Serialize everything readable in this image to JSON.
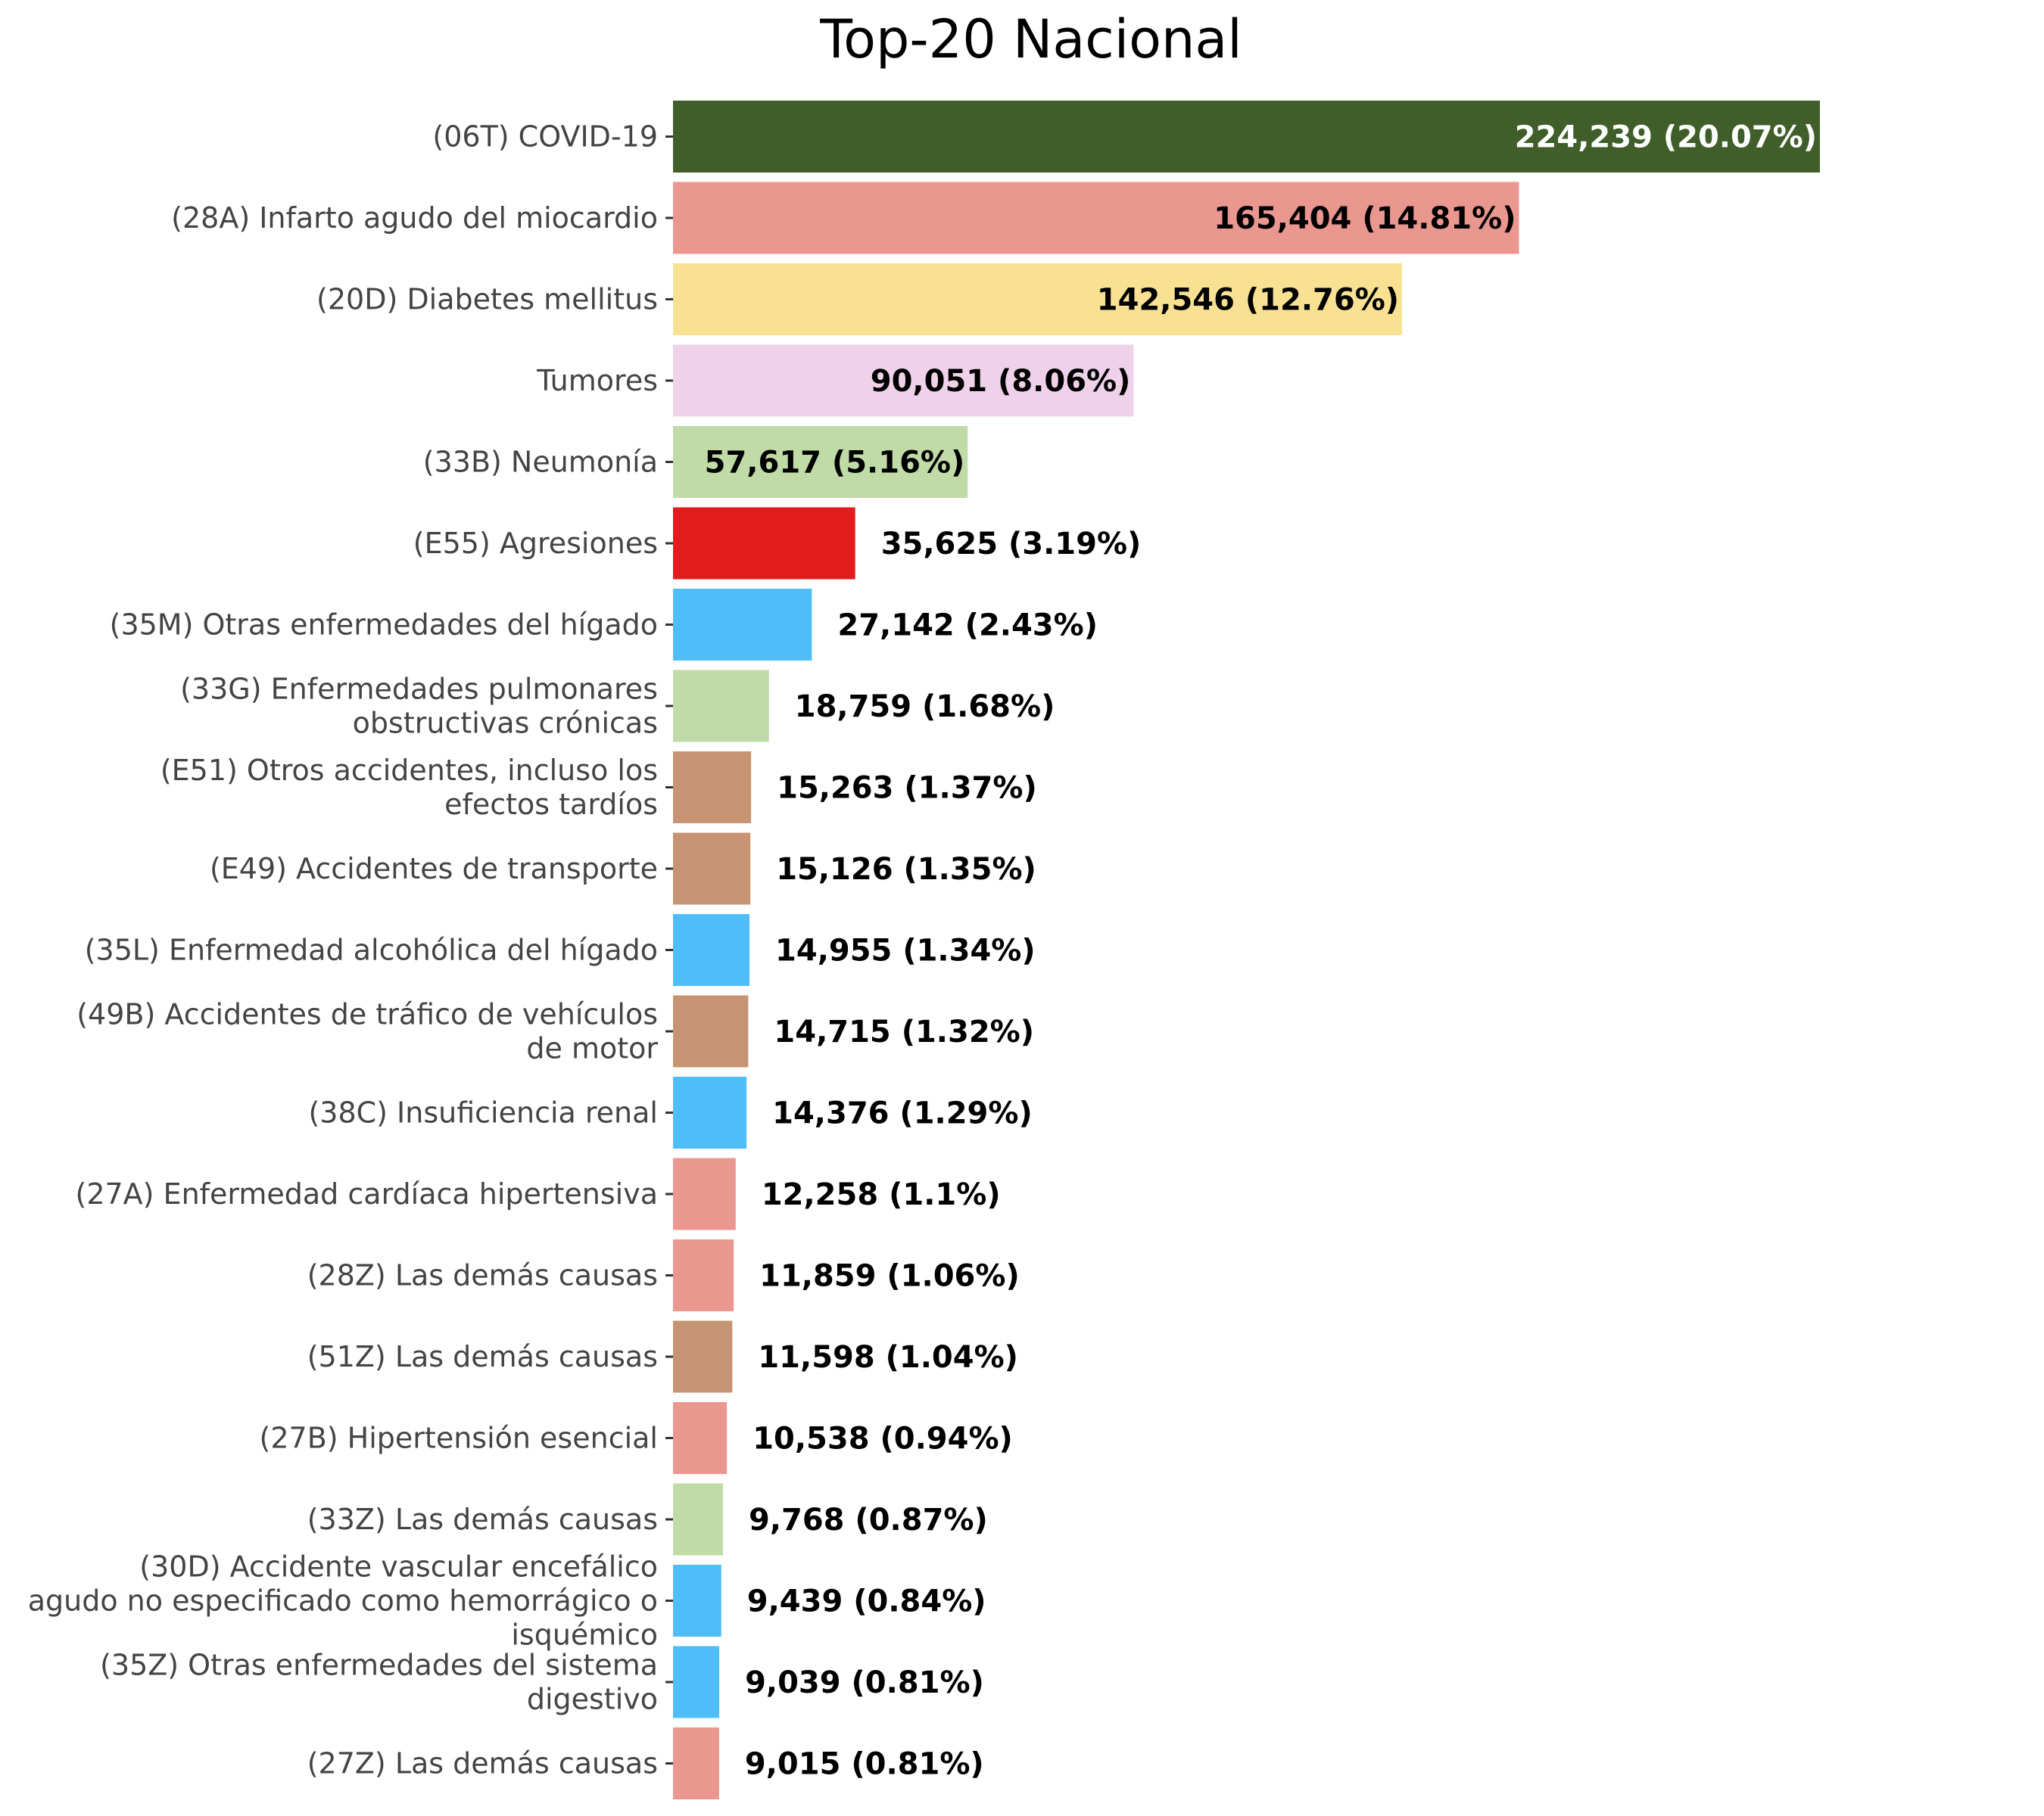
{
  "chart_data": {
    "type": "bar",
    "orientation": "horizontal",
    "title": "Top-20 Nacional",
    "xlabel": "",
    "ylabel": "",
    "grid": false,
    "legend": "none",
    "xlim": [
      0,
      224239
    ],
    "categories": [
      [
        "(06T) COVID-19"
      ],
      [
        "(28A) Infarto agudo del miocardio"
      ],
      [
        "(20D) Diabetes mellitus"
      ],
      [
        "Tumores"
      ],
      [
        "(33B) Neumonía"
      ],
      [
        "(E55) Agresiones"
      ],
      [
        "(35M) Otras enfermedades del hígado"
      ],
      [
        "(33G) Enfermedades pulmonares",
        "obstructivas crónicas"
      ],
      [
        "(E51) Otros accidentes, incluso los",
        "efectos tardíos"
      ],
      [
        "(E49) Accidentes de transporte"
      ],
      [
        "(35L) Enfermedad alcohólica del hígado"
      ],
      [
        "(49B) Accidentes de tráfico de vehículos",
        "de motor"
      ],
      [
        "(38C) Insuficiencia renal"
      ],
      [
        "(27A) Enfermedad cardíaca hipertensiva"
      ],
      [
        "(28Z) Las demás causas"
      ],
      [
        "(51Z) Las demás causas"
      ],
      [
        "(27B) Hipertensión esencial"
      ],
      [
        "(33Z) Las demás causas"
      ],
      [
        "(30D) Accidente vascular encefálico",
        "agudo no especificado como hemorrágico o",
        "isquémico"
      ],
      [
        "(35Z) Otras enfermedades del sistema",
        "digestivo"
      ],
      [
        "(27Z) Las demás causas"
      ]
    ],
    "values": [
      224239,
      165404,
      142546,
      90051,
      57617,
      35625,
      27142,
      18759,
      15263,
      15126,
      14955,
      14715,
      14376,
      12258,
      11859,
      11598,
      10538,
      9768,
      9439,
      9039,
      9015
    ],
    "value_labels": [
      "224,239 (20.07%)",
      "165,404 (14.81%)",
      "142,546 (12.76%)",
      "90,051 (8.06%)",
      "57,617 (5.16%)",
      "35,625 (3.19%)",
      "27,142 (2.43%)",
      "18,759 (1.68%)",
      "15,263 (1.37%)",
      "15,126 (1.35%)",
      "14,955 (1.34%)",
      "14,715 (1.32%)",
      "14,376 (1.29%)",
      "12,258 (1.1%)",
      "11,859 (1.06%)",
      "11,598 (1.04%)",
      "10,538 (0.94%)",
      "9,768 (0.87%)",
      "9,439 (0.84%)",
      "9,039 (0.81%)",
      "9,015 (0.81%)"
    ],
    "colors": [
      "#3f5e29",
      "#e9978f",
      "#f8e193",
      "#efd2ea",
      "#c0dba8",
      "#e31b1c",
      "#4fbef8",
      "#c0dba8",
      "#c69472",
      "#c69472",
      "#4fbef8",
      "#c69472",
      "#4fbef8",
      "#e9978f",
      "#e9978f",
      "#c69472",
      "#e9978f",
      "#c0dba8",
      "#4fbef8",
      "#4fbef8",
      "#e9978f"
    ],
    "value_label_colors": [
      "#ffffff",
      "#000000",
      "#000000",
      "#000000",
      "#000000",
      "#000000",
      "#000000",
      "#000000",
      "#000000",
      "#000000",
      "#000000",
      "#000000",
      "#000000",
      "#000000",
      "#000000",
      "#000000",
      "#000000",
      "#000000",
      "#000000",
      "#000000",
      "#000000"
    ],
    "value_label_inside": [
      true,
      true,
      true,
      true,
      true,
      false,
      false,
      false,
      false,
      false,
      false,
      false,
      false,
      false,
      false,
      false,
      false,
      false,
      false,
      false,
      false
    ]
  }
}
